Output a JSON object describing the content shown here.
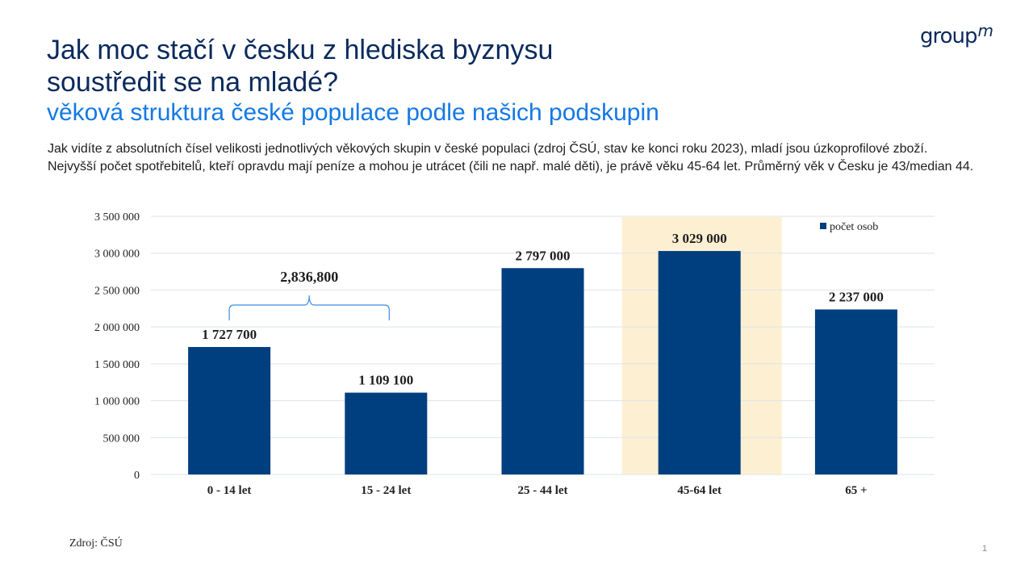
{
  "slide": {
    "title_line1": "Jak moc stačí v česku z hlediska byznysu",
    "title_line2": "soustředit se na mladé?",
    "subtitle": "věková struktura české populace podle našich podskupin",
    "description": "Jak vidíte z absolutních čísel velikosti jednotlivých věkových skupin v české populaci (zdroj ČSÚ, stav ke konci roku 2023), mladí jsou úzkoprofilové zboží. Nejvyšší počet spotřebitelů, kteří opravdu mají peníze a mohou je utrácet (čili ne např. malé děti), je právě věku 45-64 let. Průměrný věk v Česku je 43/median 44.",
    "logo_text": "group",
    "logo_mark": "m",
    "source": "Zdroj: ČSÚ",
    "page_number": "1"
  },
  "chart_data": {
    "type": "bar",
    "categories": [
      "0 - 14 let",
      "15 - 24 let",
      "25 - 44 let",
      "45-64 let",
      "65 +"
    ],
    "series": [
      {
        "name": "počet osob",
        "values": [
          1727700,
          1109100,
          2797000,
          3029000,
          2237000
        ],
        "value_labels": [
          "1 727 700",
          "1 109 100",
          "2 797 000",
          "3 029 000",
          "2 237 000"
        ],
        "color": "#003f7f"
      }
    ],
    "ylim": [
      0,
      3500000
    ],
    "yticks": [
      0,
      500000,
      1000000,
      1500000,
      2000000,
      2500000,
      3000000,
      3500000
    ],
    "ytick_labels": [
      "0",
      "500 000",
      "1 000 000",
      "1 500 000",
      "2 000 000",
      "2 500 000",
      "3 000 000",
      "3 500 000"
    ],
    "grid": true,
    "legend_position": "top-right",
    "highlight_category": "45-64 let",
    "highlight_color": "#fdf0d2",
    "brace_annotation": {
      "from": "0 - 14 let",
      "to": "15 - 24 let",
      "label": "2,836,800",
      "color": "#3a8ee6"
    },
    "gridline_color": "#dde3ea"
  }
}
